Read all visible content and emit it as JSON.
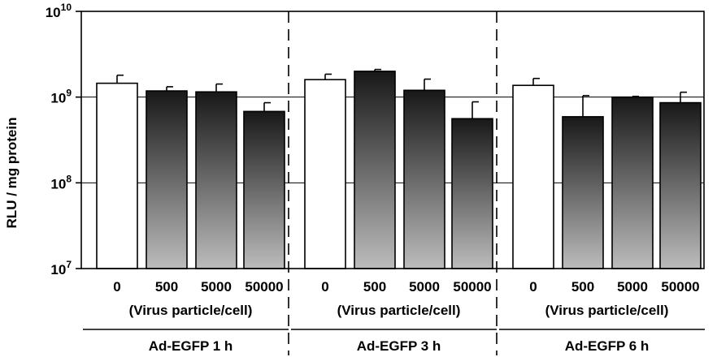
{
  "chart_data": {
    "type": "bar",
    "title": "",
    "ylabel": "RLU / mg protein",
    "yscale": "log",
    "ylim": [
      10000000,
      10000000000
    ],
    "yticks": [
      {
        "value": 10000000,
        "base": "10",
        "exp": "7"
      },
      {
        "value": 100000000,
        "base": "10",
        "exp": "8"
      },
      {
        "value": 1000000000,
        "base": "10",
        "exp": "9"
      },
      {
        "value": 10000000000,
        "base": "10",
        "exp": "10"
      }
    ],
    "gridlines": [
      100000000,
      1000000000
    ],
    "groups": [
      {
        "label": "Ad-EGFP 1 h",
        "sublabel": "(Virus particle/cell)",
        "categories": [
          "0",
          "500",
          "5000",
          "50000"
        ],
        "values": [
          1450000000,
          1180000000,
          1150000000,
          680000000
        ],
        "errors_upper": [
          1800000000,
          1320000000,
          1420000000,
          860000000
        ]
      },
      {
        "label": "Ad-EGFP 3 h",
        "sublabel": "(Virus particle/cell)",
        "categories": [
          "0",
          "500",
          "5000",
          "50000"
        ],
        "values": [
          1600000000,
          2000000000,
          1200000000,
          560000000
        ],
        "errors_upper": [
          1850000000,
          2100000000,
          1620000000,
          880000000
        ]
      },
      {
        "label": "Ad-EGFP 6 h",
        "sublabel": "(Virus particle/cell)",
        "categories": [
          "0",
          "500",
          "5000",
          "50000"
        ],
        "values": [
          1370000000,
          590000000,
          1000000000,
          860000000
        ],
        "errors_upper": [
          1650000000,
          1040000000,
          1020000000,
          1140000000
        ]
      }
    ],
    "colors": {
      "control_fill": "#ffffff",
      "gradient_top": "#181818",
      "gradient_bottom": "#bcbcbc",
      "axis": "#000000"
    }
  }
}
